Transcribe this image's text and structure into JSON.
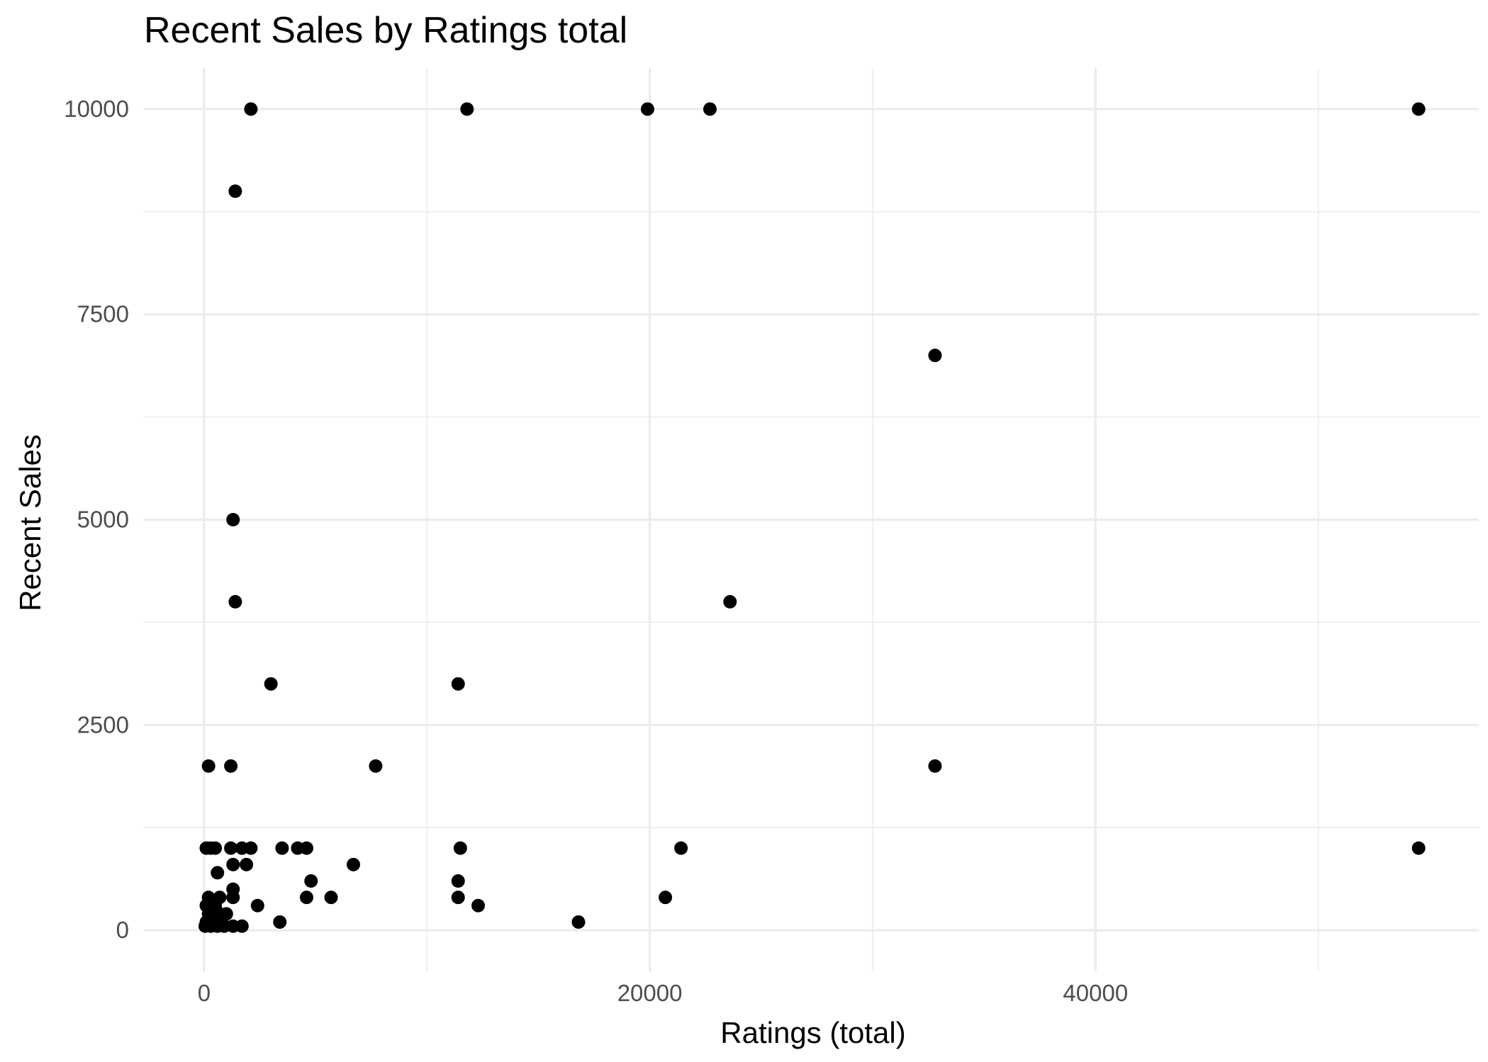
{
  "chart_data": {
    "type": "scatter",
    "title": "Recent Sales by Ratings total",
    "xlabel": "Ratings (total)",
    "ylabel": "Recent Sales",
    "xlim": [
      -2700,
      57200
    ],
    "ylim": [
      -500,
      10500
    ],
    "x_ticks": [
      0,
      20000,
      40000
    ],
    "x_tick_labels": [
      "0",
      "20000",
      "40000"
    ],
    "x_minor_ticks": [
      10000,
      30000,
      50000
    ],
    "y_ticks": [
      0,
      2500,
      5000,
      7500,
      10000
    ],
    "y_tick_labels": [
      "0",
      "2500",
      "5000",
      "7500",
      "10000"
    ],
    "y_minor_ticks": [
      1250,
      3750,
      6250,
      8750
    ],
    "grid": true,
    "legend": "none",
    "point_color": "#000000",
    "points": [
      {
        "x": 2100,
        "y": 10000
      },
      {
        "x": 11800,
        "y": 10000
      },
      {
        "x": 19900,
        "y": 10000
      },
      {
        "x": 22700,
        "y": 10000
      },
      {
        "x": 54500,
        "y": 10000
      },
      {
        "x": 1400,
        "y": 9000
      },
      {
        "x": 32800,
        "y": 7000
      },
      {
        "x": 1300,
        "y": 5000
      },
      {
        "x": 1400,
        "y": 4000
      },
      {
        "x": 23600,
        "y": 4000
      },
      {
        "x": 3000,
        "y": 3000
      },
      {
        "x": 11400,
        "y": 3000
      },
      {
        "x": 200,
        "y": 2000
      },
      {
        "x": 1200,
        "y": 2000
      },
      {
        "x": 7700,
        "y": 2000
      },
      {
        "x": 32800,
        "y": 2000
      },
      {
        "x": 100,
        "y": 1000
      },
      {
        "x": 300,
        "y": 1000
      },
      {
        "x": 500,
        "y": 1000
      },
      {
        "x": 1200,
        "y": 1000
      },
      {
        "x": 1700,
        "y": 1000
      },
      {
        "x": 2100,
        "y": 1000
      },
      {
        "x": 3500,
        "y": 1000
      },
      {
        "x": 4200,
        "y": 1000
      },
      {
        "x": 4600,
        "y": 1000
      },
      {
        "x": 11500,
        "y": 1000
      },
      {
        "x": 21400,
        "y": 1000
      },
      {
        "x": 54500,
        "y": 1000
      },
      {
        "x": 1300,
        "y": 800
      },
      {
        "x": 1900,
        "y": 800
      },
      {
        "x": 6700,
        "y": 800
      },
      {
        "x": 600,
        "y": 700
      },
      {
        "x": 4800,
        "y": 600
      },
      {
        "x": 11400,
        "y": 600
      },
      {
        "x": 1300,
        "y": 500
      },
      {
        "x": 200,
        "y": 400
      },
      {
        "x": 700,
        "y": 400
      },
      {
        "x": 1300,
        "y": 400
      },
      {
        "x": 4600,
        "y": 400
      },
      {
        "x": 5700,
        "y": 400
      },
      {
        "x": 11400,
        "y": 400
      },
      {
        "x": 20700,
        "y": 400
      },
      {
        "x": 100,
        "y": 300
      },
      {
        "x": 500,
        "y": 300
      },
      {
        "x": 2400,
        "y": 300
      },
      {
        "x": 12300,
        "y": 300
      },
      {
        "x": 200,
        "y": 200
      },
      {
        "x": 700,
        "y": 200
      },
      {
        "x": 1000,
        "y": 200
      },
      {
        "x": 100,
        "y": 100
      },
      {
        "x": 400,
        "y": 100
      },
      {
        "x": 800,
        "y": 100
      },
      {
        "x": 3400,
        "y": 100
      },
      {
        "x": 16800,
        "y": 100
      },
      {
        "x": 50,
        "y": 50
      },
      {
        "x": 300,
        "y": 50
      },
      {
        "x": 600,
        "y": 50
      },
      {
        "x": 900,
        "y": 50
      },
      {
        "x": 1300,
        "y": 50
      },
      {
        "x": 1700,
        "y": 50
      }
    ]
  }
}
